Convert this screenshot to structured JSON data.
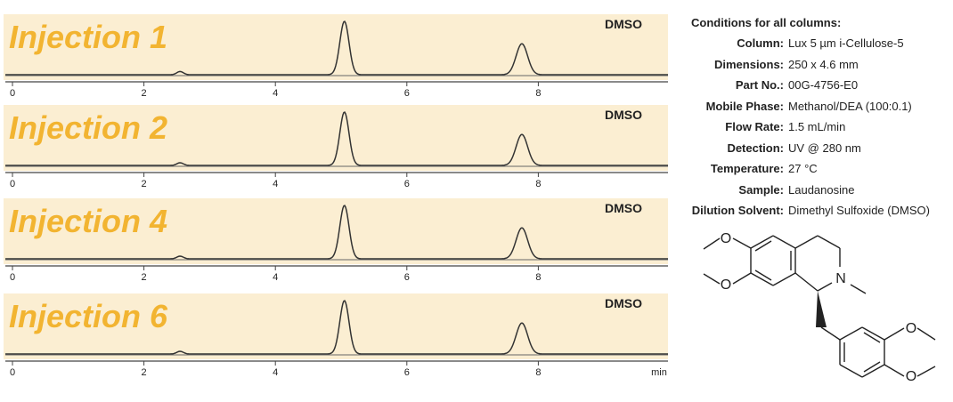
{
  "chart_data": [
    {
      "type": "line",
      "title": "Injection 1",
      "solvent_label": "DMSO",
      "x_ticks": [
        "0",
        "2",
        "4",
        "6",
        "8"
      ],
      "xlim": [
        0,
        10
      ],
      "x_unit": "",
      "peaks": [
        {
          "x": 2.55,
          "height": 0.06
        },
        {
          "x": 5.05,
          "height": 1.0
        },
        {
          "x": 7.75,
          "height": 0.58
        }
      ]
    },
    {
      "type": "line",
      "title": "Injection 2",
      "solvent_label": "DMSO",
      "x_ticks": [
        "0",
        "2",
        "4",
        "6",
        "8"
      ],
      "xlim": [
        0,
        10
      ],
      "x_unit": "",
      "peaks": [
        {
          "x": 2.55,
          "height": 0.05
        },
        {
          "x": 5.05,
          "height": 1.0
        },
        {
          "x": 7.75,
          "height": 0.58
        }
      ]
    },
    {
      "type": "line",
      "title": "Injection 4",
      "solvent_label": "DMSO",
      "x_ticks": [
        "0",
        "2",
        "4",
        "6",
        "8"
      ],
      "xlim": [
        0,
        10
      ],
      "x_unit": "",
      "peaks": [
        {
          "x": 2.55,
          "height": 0.05
        },
        {
          "x": 5.05,
          "height": 1.0
        },
        {
          "x": 7.75,
          "height": 0.58
        }
      ]
    },
    {
      "type": "line",
      "title": "Injection 6",
      "solvent_label": "DMSO",
      "x_ticks": [
        "0",
        "2",
        "4",
        "6",
        "8"
      ],
      "xlim": [
        0,
        10
      ],
      "x_unit": "min",
      "peaks": [
        {
          "x": 2.55,
          "height": 0.05
        },
        {
          "x": 5.05,
          "height": 1.0
        },
        {
          "x": 7.75,
          "height": 0.58
        }
      ]
    }
  ],
  "conditions": {
    "title": "Conditions for all columns:",
    "rows": [
      {
        "label": "Column:",
        "value": "Lux 5 µm i-Cellulose-5"
      },
      {
        "label": "Dimensions:",
        "value": "250 x 4.6 mm"
      },
      {
        "label": "Part No.:",
        "value": "00G-4756-E0"
      },
      {
        "label": "Mobile Phase:",
        "value": "Methanol/DEA (100:0.1)"
      },
      {
        "label": "Flow Rate:",
        "value": "1.5 mL/min"
      },
      {
        "label": "Detection:",
        "value": "UV @ 280 nm"
      },
      {
        "label": "Temperature:",
        "value": "27 °C"
      },
      {
        "label": "Sample:",
        "value": "Laudanosine"
      },
      {
        "label": "Dilution Solvent:",
        "value": "Dimethyl Sulfoxide (DMSO)"
      }
    ]
  },
  "structure": {
    "atom_n": "N",
    "atom_o": "O",
    "methyl_n": "–"
  },
  "colors": {
    "panel_fill": "#fbeed2",
    "title_color": "#f2b431",
    "trace": "#333333"
  }
}
